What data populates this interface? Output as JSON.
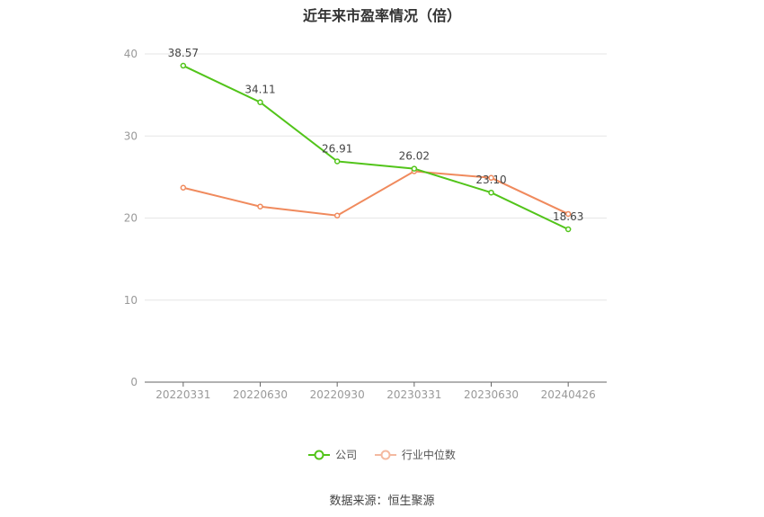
{
  "chart_data": {
    "type": "line",
    "title": "近年来市盈率情况（倍）",
    "categories": [
      "20220331",
      "20220630",
      "20220930",
      "20230331",
      "20230630",
      "20240426"
    ],
    "ylim": [
      0,
      40
    ],
    "yticks": [
      0,
      10,
      20,
      30,
      40
    ],
    "grid": true,
    "legend_position": "bottom",
    "series": [
      {
        "name": "公司",
        "color": "#52c41a",
        "values": [
          38.57,
          34.11,
          26.91,
          26.02,
          23.1,
          18.63
        ],
        "labels": [
          "38.57",
          "34.11",
          "26.91",
          "26.02",
          "23.10",
          "18.63"
        ]
      },
      {
        "name": "行业中位数",
        "color": "#f08a5d",
        "values": [
          23.7,
          21.4,
          20.3,
          25.7,
          24.9,
          20.5
        ]
      }
    ]
  },
  "footer": {
    "source": "数据来源：恒生聚源"
  }
}
